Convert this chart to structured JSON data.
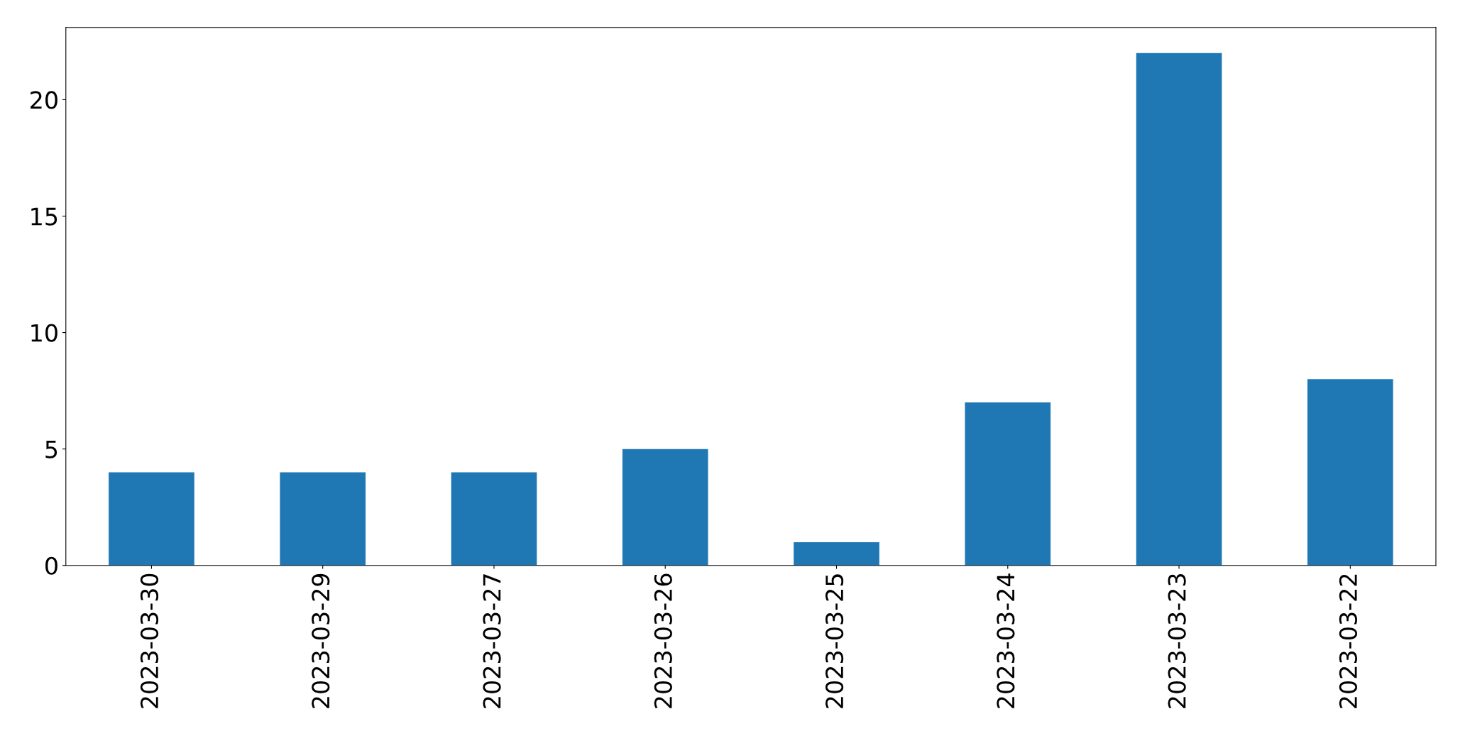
{
  "chart_data": {
    "type": "bar",
    "categories": [
      "2023-03-30",
      "2023-03-29",
      "2023-03-27",
      "2023-03-26",
      "2023-03-25",
      "2023-03-24",
      "2023-03-23",
      "2023-03-22"
    ],
    "values": [
      4,
      4,
      4,
      5,
      1,
      7,
      22,
      8
    ],
    "color": "#1f77b4",
    "ylim": [
      0,
      23.1
    ],
    "yticks": [
      0,
      5,
      10,
      15,
      20
    ],
    "grid": false,
    "legend": false
  }
}
